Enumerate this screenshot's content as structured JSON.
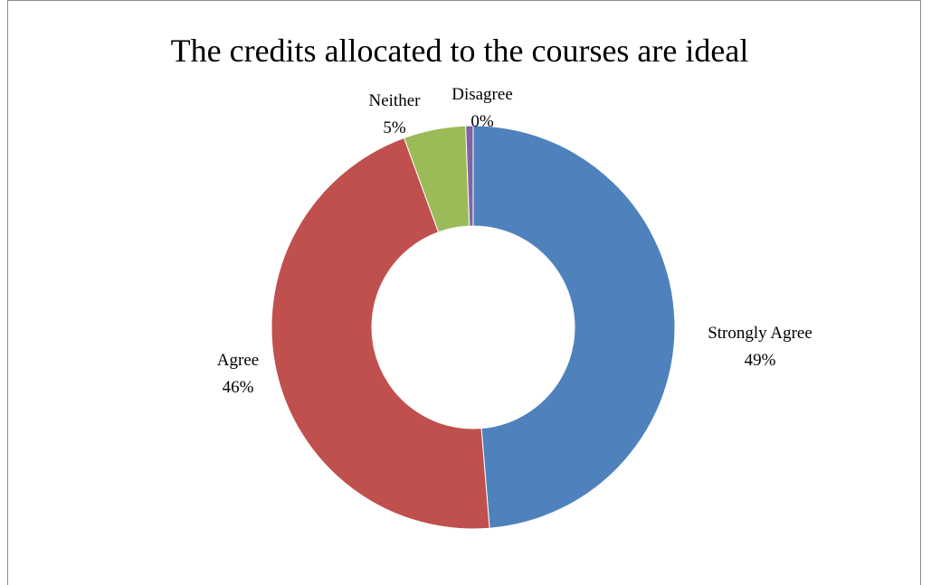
{
  "chart_data": {
    "type": "pie",
    "subtype": "doughnut",
    "title": "The credits allocated to the courses are ideal",
    "categories": [
      "Strongly Agree",
      "Agree",
      "Neither",
      "Disagree"
    ],
    "values": [
      49,
      46,
      5,
      0
    ],
    "value_labels": [
      "49%",
      "46%",
      "5%",
      "0%"
    ],
    "colors": [
      "#4F81BD",
      "#C0504D",
      "#9BBB59",
      "#8064A2"
    ],
    "legend": "none"
  }
}
